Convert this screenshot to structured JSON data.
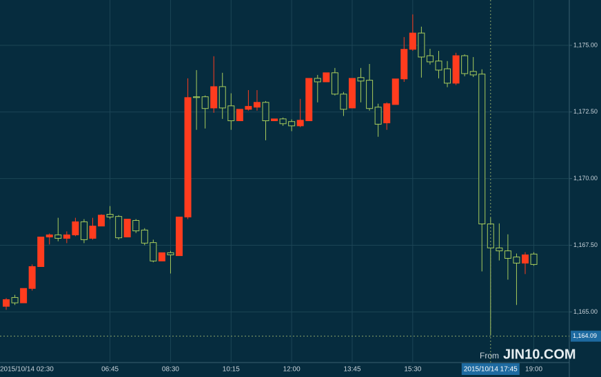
{
  "chart_data": {
    "type": "candlestick",
    "categories": [
      "2015/10/14 02:30",
      null,
      null,
      null,
      null,
      null,
      null,
      null,
      null,
      null,
      null,
      null,
      "06:45",
      null,
      null,
      null,
      null,
      null,
      null,
      "08:30",
      null,
      null,
      null,
      null,
      null,
      null,
      "10:15",
      null,
      null,
      null,
      null,
      null,
      null,
      "12:00",
      null,
      null,
      null,
      null,
      null,
      null,
      "13:45",
      null,
      null,
      null,
      null,
      null,
      null,
      "15:30",
      null,
      null,
      null,
      null,
      null,
      null,
      null,
      null,
      "2015/10/14 17:45",
      null,
      null,
      null,
      null,
      "19:00"
    ],
    "open": [
      1165.21,
      1165.54,
      1165.34,
      1165.88,
      1166.7,
      1167.81,
      1167.89,
      1167.76,
      1167.89,
      1168.38,
      1167.76,
      1168.22,
      1168.66,
      1168.58,
      1167.81,
      1168.43,
      1168.07,
      1167.6,
      1166.91,
      1167.22,
      1167.11,
      1168.56,
      1173.07,
      1173.07,
      1172.65,
      1173.45,
      1172.73,
      1172.17,
      1172.6,
      1172.68,
      1172.86,
      1172.17,
      1172.24,
      1172.14,
      1171.98,
      1172.17,
      1173.76,
      1173.63,
      1173.97,
      1173.17,
      1172.65,
      1173.79,
      1173.69,
      1172.68,
      1172.09,
      1172.78,
      1173.74,
      1174.85,
      1175.46,
      1174.61,
      1174.41,
      1174.12,
      1173.58,
      1174.61,
      1174.02,
      1173.92,
      1168.3,
      1167.4,
      1167.29,
      1167.06,
      1166.83,
      1167.17
    ],
    "high": [
      1165.52,
      1165.64,
      1165.88,
      1166.78,
      1167.81,
      1167.94,
      1168.53,
      1168.02,
      1168.53,
      1168.48,
      1168.53,
      1168.66,
      1168.97,
      1168.63,
      1168.48,
      1168.48,
      1168.14,
      1167.71,
      1167.22,
      1167.29,
      1168.56,
      1173.76,
      1174.07,
      1173.12,
      1174.59,
      1173.97,
      1173.2,
      1172.6,
      1173.32,
      1173.32,
      1172.91,
      1172.24,
      1172.29,
      1172.22,
      1172.99,
      1173.76,
      1173.89,
      1173.97,
      1174.15,
      1173.25,
      1173.76,
      1174.15,
      1174.3,
      1172.81,
      1172.86,
      1173.74,
      1175.31,
      1176.16,
      1175.7,
      1174.87,
      1174.79,
      1174.41,
      1174.72,
      1174.66,
      1174.56,
      1174.1,
      1168.53,
      1168.32,
      1167.91,
      1167.19,
      1167.24,
      1167.24
    ],
    "low": [
      1165.08,
      1165.26,
      1165.34,
      1165.8,
      1166.7,
      1167.53,
      1167.65,
      1167.58,
      1167.84,
      1167.58,
      1167.71,
      1168.22,
      1168.48,
      1167.71,
      1167.81,
      1167.96,
      1167.5,
      1166.86,
      1166.91,
      1166.44,
      1167.11,
      1168.48,
      1171.83,
      1171.88,
      1172.47,
      1172.24,
      1171.83,
      1172.17,
      1172.55,
      1172.55,
      1171.44,
      1172.17,
      1171.98,
      1171.78,
      1171.93,
      1172.17,
      1172.86,
      1173.63,
      1173.12,
      1172.35,
      1172.65,
      1172.86,
      1172.55,
      1171.57,
      1171.83,
      1172.78,
      1173.63,
      1174.79,
      1173.79,
      1174.28,
      1173.76,
      1173.43,
      1173.51,
      1173.84,
      1173.81,
      1166.52,
      1164.12,
      1166.93,
      1166.21,
      1165.26,
      1166.42,
      1166.73
    ],
    "close": [
      1165.46,
      1165.34,
      1165.88,
      1166.7,
      1167.81,
      1167.89,
      1167.76,
      1167.89,
      1168.38,
      1167.71,
      1168.22,
      1168.63,
      1168.56,
      1167.78,
      1168.48,
      1168.04,
      1167.58,
      1166.91,
      1167.22,
      1167.14,
      1168.56,
      1173.04,
      1173.04,
      1172.63,
      1173.45,
      1172.65,
      1172.17,
      1172.6,
      1172.71,
      1172.86,
      1172.17,
      1172.24,
      1172.06,
      1171.98,
      1172.19,
      1173.76,
      1173.63,
      1173.97,
      1173.17,
      1172.6,
      1173.76,
      1173.66,
      1172.63,
      1172.04,
      1172.81,
      1173.74,
      1174.85,
      1175.46,
      1174.56,
      1174.38,
      1174.07,
      1173.58,
      1174.61,
      1173.94,
      1173.89,
      1168.3,
      1167.4,
      1167.29,
      1167.01,
      1166.83,
      1167.14,
      1166.78
    ],
    "up_color": "#ff3c1e",
    "down_color": "#a8cc5c",
    "ylim": [
      1163.1,
      1176.7
    ],
    "yticks": [
      {
        "value": 1165,
        "label": "1,165.00"
      },
      {
        "value": 1167.5,
        "label": "1,167.50"
      },
      {
        "value": 1170,
        "label": "1,170.00"
      },
      {
        "value": 1172.5,
        "label": "1,172.50"
      },
      {
        "value": 1175,
        "label": "1,175.00"
      }
    ],
    "last_price": {
      "value": 1164.09,
      "label": "1,164.09"
    },
    "crosshair": 56,
    "grid": true,
    "watermark_prefix": "From",
    "watermark": "JIN10.COM"
  }
}
